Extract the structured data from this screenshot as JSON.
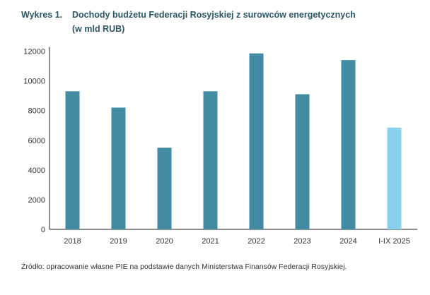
{
  "title": {
    "label": "Wykres 1.",
    "line1": "Dochody budżetu Federacji Rosyjskiej z surowców energetycznych",
    "line2": "(w mld RUB)"
  },
  "source": "Źródło: opracowanie własne PIE na podstawie danych Ministerstwa Finansów Federacji Rosyjskiej.",
  "chart_data": {
    "type": "bar",
    "title": "Dochody budżetu Federacji Rosyjskiej z surowców energetycznych (w mld RUB)",
    "categories": [
      "2018",
      "2019",
      "2020",
      "2021",
      "2022",
      "2023",
      "2024",
      "I-IX 2025"
    ],
    "values": [
      9300,
      8200,
      5500,
      9300,
      11850,
      9100,
      11400,
      6850
    ],
    "ylim": [
      0,
      12000
    ],
    "yticks": [
      "0",
      "2000",
      "4000",
      "6000",
      "8000",
      "10000",
      "12000"
    ],
    "grid": false,
    "legend": "none",
    "colors": {
      "main": "#438aa3",
      "highlight": "#88d0eb"
    },
    "highlight_index": 7
  }
}
